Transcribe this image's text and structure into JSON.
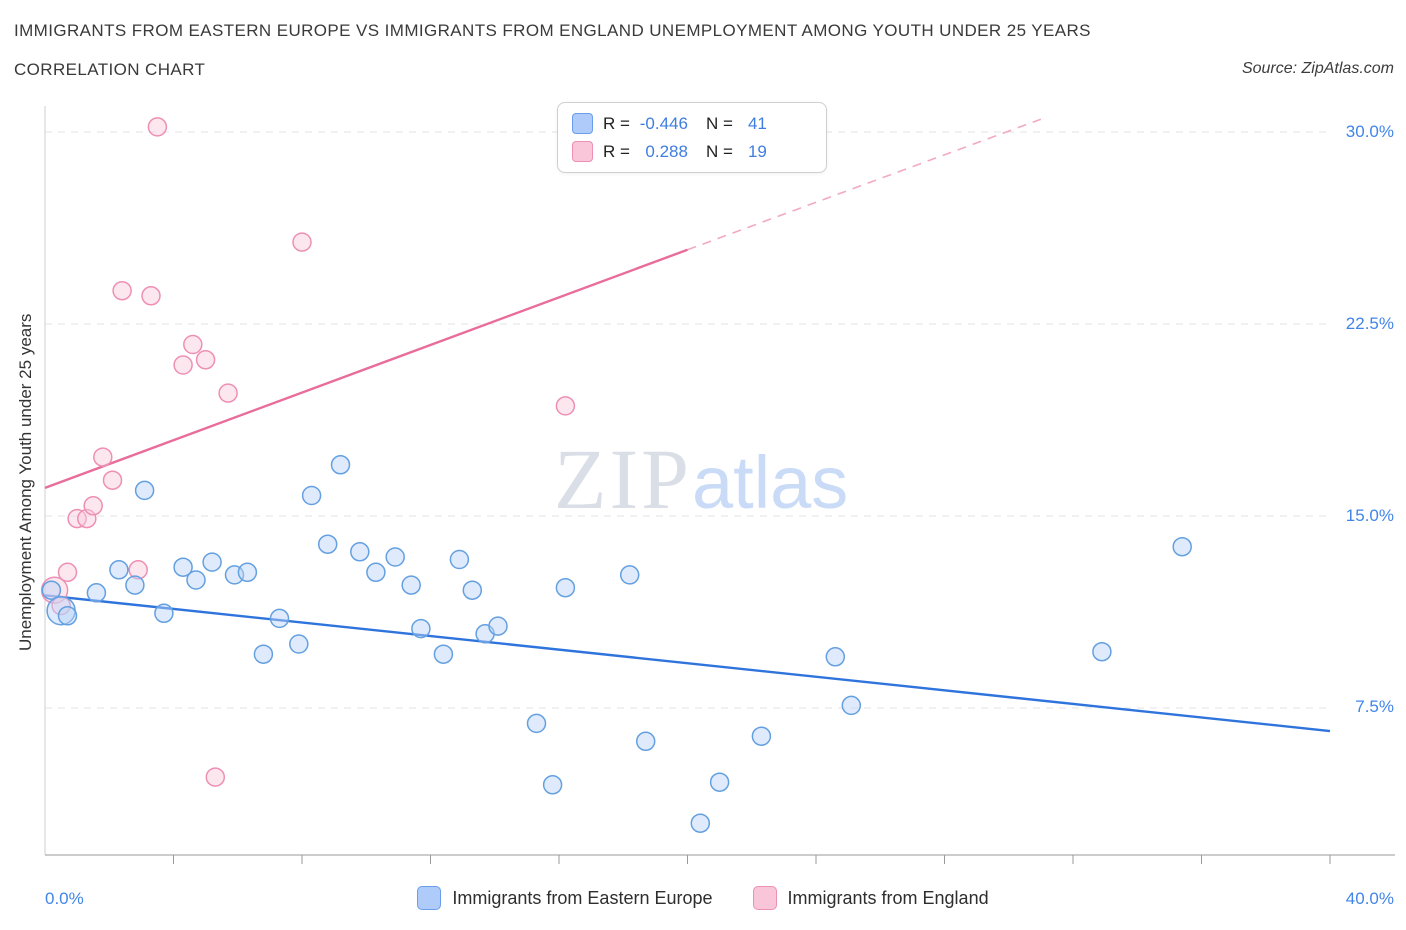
{
  "header": {
    "title": "IMMIGRANTS FROM EASTERN EUROPE VS IMMIGRANTS FROM ENGLAND UNEMPLOYMENT AMONG YOUTH UNDER 25 YEARS",
    "subtitle": "CORRELATION CHART",
    "source": "Source: ZipAtlas.com"
  },
  "correlation_legend": {
    "rows": [
      {
        "r_label": "R =",
        "r_value": "-0.446",
        "n_label": "N =",
        "n_value": "41"
      },
      {
        "r_label": "R =",
        "r_value": "0.288",
        "n_label": "N =",
        "n_value": "19"
      }
    ]
  },
  "watermark": {
    "zip": "ZIP",
    "atlas": "atlas"
  },
  "colors": {
    "accent_blue": "#4185e8",
    "blue_point_fill": "#b7d3f8",
    "blue_point_stroke": "#64a0e0",
    "blue_trend_line": "#2f74dd",
    "pink_point_fill": "#f9c9db",
    "pink_point_stroke": "#ee8fb4",
    "pink_trend_line": "#e96d9b",
    "pink_trend_dashed": "#f2a9c4",
    "gridline": "#e3e3e3"
  },
  "chart_data": {
    "type": "scatter",
    "title": "Immigrants from Eastern Europe vs Immigrants from England Unemployment Among Youth under 25 years",
    "xlabel": "",
    "ylabel": "Unemployment Among Youth under 25 years",
    "xlim": [
      0,
      40
    ],
    "ylim": [
      0,
      31
    ],
    "grid": "horizontal-dashed",
    "legend_position": "bottom",
    "x_ticks": [
      {
        "value": 0,
        "label": "0.0%"
      },
      {
        "value": 40,
        "label": "40.0%"
      }
    ],
    "y_ticks": [
      {
        "value": 7.5,
        "label": "7.5%"
      },
      {
        "value": 15,
        "label": "15.0%"
      },
      {
        "value": 22.5,
        "label": "22.5%"
      },
      {
        "value": 30,
        "label": "30.0%"
      }
    ],
    "series": [
      {
        "name": "Immigrants from Eastern Europe",
        "R": -0.446,
        "N": 41,
        "fill": "#b7d3f8",
        "point_stroke": "#64a0e0",
        "line": "#2f74dd",
        "trend": {
          "x1": 0,
          "y1": 11.9,
          "x2": 40,
          "y2": 6.6
        },
        "points": [
          [
            0.2,
            12.1
          ],
          [
            0.5,
            11.3,
            14
          ],
          [
            0.7,
            11.1
          ],
          [
            1.6,
            12.0
          ],
          [
            2.3,
            12.9
          ],
          [
            2.8,
            12.3
          ],
          [
            3.1,
            16.0
          ],
          [
            3.7,
            11.2
          ],
          [
            4.3,
            13.0
          ],
          [
            4.7,
            12.5
          ],
          [
            5.2,
            13.2
          ],
          [
            5.9,
            12.7
          ],
          [
            6.3,
            12.8
          ],
          [
            6.8,
            9.6
          ],
          [
            7.3,
            11.0
          ],
          [
            7.9,
            10.0
          ],
          [
            8.3,
            15.8
          ],
          [
            8.8,
            13.9
          ],
          [
            9.2,
            17.0
          ],
          [
            9.8,
            13.6
          ],
          [
            10.3,
            12.8
          ],
          [
            10.9,
            13.4
          ],
          [
            11.4,
            12.3
          ],
          [
            11.7,
            10.6
          ],
          [
            12.4,
            9.6
          ],
          [
            12.9,
            13.3
          ],
          [
            13.3,
            12.1
          ],
          [
            13.7,
            10.4
          ],
          [
            14.1,
            10.7
          ],
          [
            15.3,
            6.9
          ],
          [
            15.8,
            4.5
          ],
          [
            16.2,
            12.2
          ],
          [
            18.2,
            12.7
          ],
          [
            18.7,
            6.2
          ],
          [
            20.4,
            3.0
          ],
          [
            21.0,
            4.6
          ],
          [
            22.3,
            6.4
          ],
          [
            24.6,
            9.5
          ],
          [
            25.1,
            7.6
          ],
          [
            32.9,
            9.7
          ],
          [
            35.4,
            13.8
          ]
        ]
      },
      {
        "name": "Immigrants from England",
        "R": 0.288,
        "N": 19,
        "fill": "#f9c9db",
        "point_stroke": "#ee8fb4",
        "line": "#e96d9b",
        "trend": {
          "x1": 0,
          "y1": 16.1,
          "x2": 20,
          "y2": 25.4,
          "dash_x": 31,
          "dash_y": 30.5
        },
        "points": [
          [
            0.3,
            12.1,
            13
          ],
          [
            0.5,
            11.5
          ],
          [
            0.7,
            12.8
          ],
          [
            1.0,
            14.9
          ],
          [
            1.3,
            14.9
          ],
          [
            1.5,
            15.4
          ],
          [
            1.8,
            17.3
          ],
          [
            2.1,
            16.4
          ],
          [
            2.4,
            23.8
          ],
          [
            2.9,
            12.9
          ],
          [
            3.3,
            23.6
          ],
          [
            3.5,
            30.2
          ],
          [
            4.3,
            20.9
          ],
          [
            4.6,
            21.7
          ],
          [
            5.0,
            21.1
          ],
          [
            5.3,
            4.8
          ],
          [
            5.7,
            19.8
          ],
          [
            8.0,
            25.7
          ],
          [
            16.2,
            19.3
          ]
        ]
      }
    ]
  },
  "bottom_legend": {
    "items": [
      {
        "label": "Immigrants from Eastern Europe"
      },
      {
        "label": "Immigrants from England"
      }
    ]
  }
}
